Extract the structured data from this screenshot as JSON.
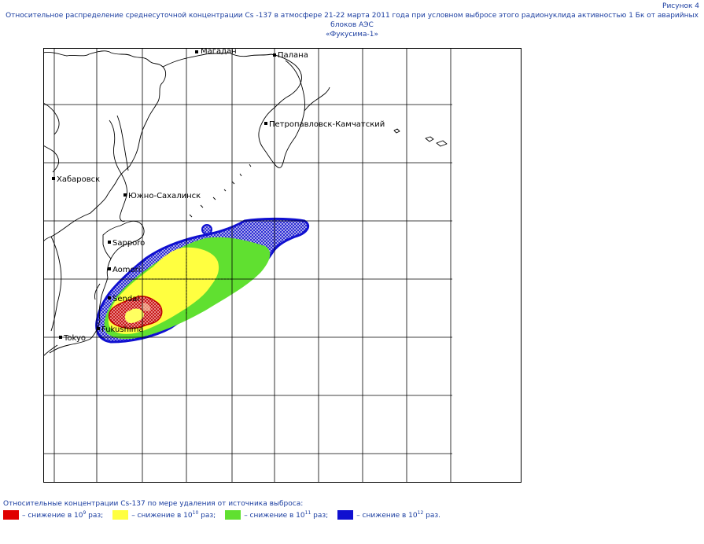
{
  "header": {
    "figure_number": "Рисунок 4",
    "title_line1": "Относительное распределение среднесуточной концентрации Cs -137 в атмосфере 21-22 марта 2011 года при условном выбросе этого радионуклида активностью 1 Бк от аварийных блоков АЭС",
    "title_line2": "«Фукусима-1»"
  },
  "map": {
    "cities": [
      {
        "name": "Магадан"
      },
      {
        "name": "Палана"
      },
      {
        "name": "Петропавловск-Камчатский"
      },
      {
        "name": "Хабаровск"
      },
      {
        "name": "Южно-Сахалинск"
      },
      {
        "name": "Sapporo"
      },
      {
        "name": "Aomori"
      },
      {
        "name": "Sendai"
      },
      {
        "name": "Fukushima"
      },
      {
        "name": "Tokyo"
      }
    ],
    "colors": {
      "red": "#e00000",
      "yellow": "#ffff40",
      "green": "#60e030",
      "blue": "#1010d0",
      "grid": "#000000",
      "coast": "#000000"
    }
  },
  "legend": {
    "title": "Относительные концентрации Cs-137 по мере удаления от источника выброса:",
    "items": [
      {
        "color": "#e00000",
        "prefix": "– снижение в 10",
        "exp": "9",
        "suffix": " раз;"
      },
      {
        "color": "#ffff40",
        "prefix": "– снижение в 10",
        "exp": "10",
        "suffix": " раз;"
      },
      {
        "color": "#60e030",
        "prefix": "– снижение в 10",
        "exp": "11",
        "suffix": " раз;"
      },
      {
        "color": "#1010d0",
        "prefix": "– снижение в 10",
        "exp": "12",
        "suffix": " раз."
      }
    ]
  }
}
